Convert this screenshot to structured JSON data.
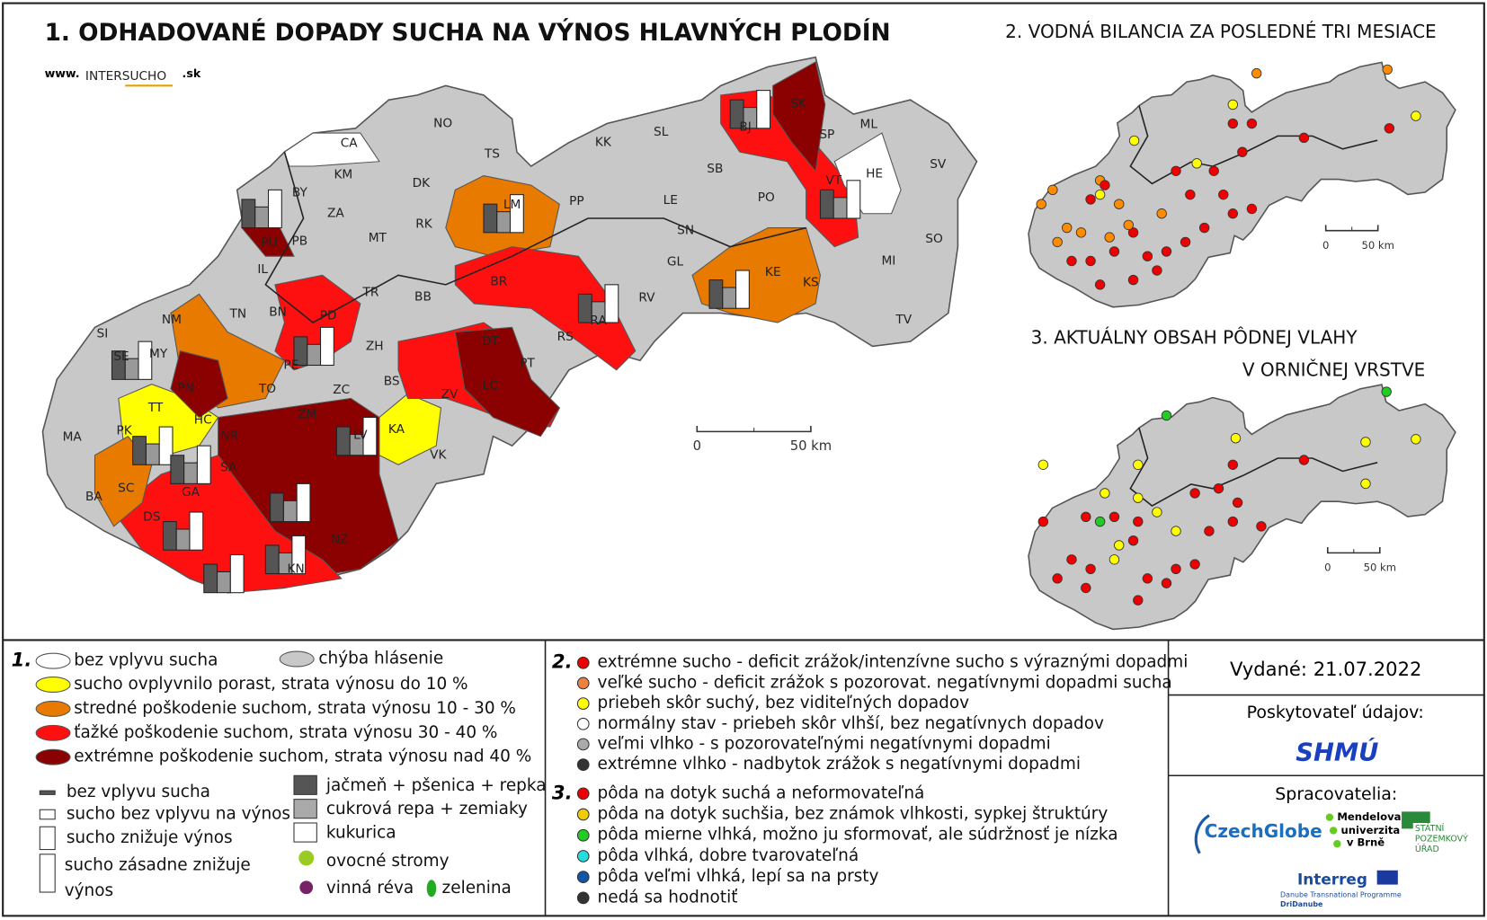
{
  "map1": {
    "title": "1. ODHADOVANÉ DOPADY SUCHA NA VÝNOS HLAVNÝCH PLODÍN",
    "logo": [
      "www.",
      "INTERSUCHO",
      ".sk"
    ],
    "districts": [
      "NO",
      "CA",
      "TS",
      "KM",
      "DK",
      "BY",
      "ZA",
      "MT",
      "RK",
      "PU",
      "PB",
      "IL",
      "TN",
      "BN",
      "PD",
      "NM",
      "SI",
      "SE",
      "MY",
      "PE",
      "TR",
      "BB",
      "ZH",
      "BS",
      "ZC",
      "PN",
      "TO",
      "TT",
      "HC",
      "NR",
      "MA",
      "PK",
      "ZM",
      "LV",
      "KA",
      "VK",
      "SA",
      "GA",
      "SC",
      "BA",
      "DS",
      "NZ",
      "KN",
      "KK",
      "SL",
      "SB",
      "LM",
      "PP",
      "LE",
      "SN",
      "PO",
      "BR",
      "GL",
      "RV",
      "RA",
      "RS",
      "DT",
      "PT",
      "LC",
      "ZV",
      "KE",
      "KS",
      "BJ",
      "SK",
      "SP",
      "ML",
      "VT",
      "HE",
      "SV",
      "SO",
      "MI",
      "TV"
    ],
    "scale": [
      "0",
      "50 km"
    ]
  },
  "map2": {
    "title": "2. VODNÁ BILANCIA ZA POSLEDNÉ TRI MESIACE",
    "scale": [
      "0",
      "50 km"
    ]
  },
  "map3": {
    "title": [
      "3. AKTUÁLNY OBSAH PÔDNEJ VLAHY",
      "V ORNIČNEJ VRSTVE"
    ],
    "scale": [
      "0",
      "50 km"
    ]
  },
  "legend1": {
    "number": "1.",
    "impact": [
      "bez vplyvu sucha",
      "chýba hlásenie",
      "sucho ovplyvnilo porast, strata výnosu do 10 %",
      "stredné poškodenie suchom, strata výnosu 10 - 30 %",
      "ťažké poškodenie suchom, strata výnosu 30 - 40 %",
      "extrémne poškodenie suchom, strata výnosu nad 40 %"
    ],
    "bars": [
      "bez vplyvu sucha",
      "sucho bez vplyvu na výnos",
      "sucho znižuje výnos",
      "sucho zásadne znižuje",
      "výnos"
    ],
    "crops": [
      "jačmeň + pšenica + repka",
      "cukrová repa + zemiaky",
      "kukurica",
      "ovocné stromy",
      "vinná réva",
      "zelenina"
    ]
  },
  "legend2": {
    "number": "2.",
    "items": [
      "extrémne sucho - deficit zrážok/intenzívne sucho s výraznými dopadmi",
      "veľké sucho - deficit zrážok s pozorovat. negatívnymi dopadmi sucha",
      "priebeh skôr suchý, bez viditeľných dopadov",
      "normálny stav - priebeh skôr vlhší, bez negatívnych dopadov",
      "veľmi vlhko - s pozorovateľnými negatívnymi dopadmi",
      "extrémne vlhko - nadbytok zrážok s negatívnymi dopadmi"
    ]
  },
  "legend3": {
    "number": "3.",
    "items": [
      "pôda na dotyk suchá a neformovateľná",
      "pôda na dotyk suchšia, bez známok vlhkosti, sypkej štruktúry",
      "pôda mierne vlhká, možno ju sformovať, ale súdržnosť je nízka",
      "pôda vlhká, dobre tvarovateľná",
      "pôda veľmi vlhká, lepí sa na prsty",
      "nedá sa hodnotiť"
    ]
  },
  "issued": "Vydané: 21.07.2022",
  "provider": "Poskytovateľ údajov:",
  "provider_logo": "SHMÚ",
  "processors": "Spracovatelia:",
  "logos": [
    "CzechGlobe",
    "Mendelova",
    "univerzita",
    "v Brně",
    "STÁTNÍ",
    "POZEMKOVÝ",
    "ÚŘAD",
    "Interreg",
    "Danube Transnational Programme",
    "DriDanube"
  ]
}
